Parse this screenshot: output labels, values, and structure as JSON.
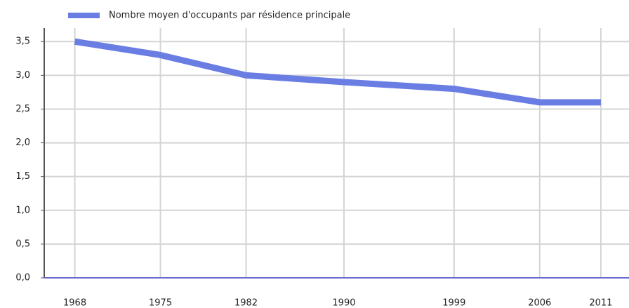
{
  "chart_data": {
    "type": "line",
    "x": [
      1968,
      1975,
      1982,
      1990,
      1999,
      2006,
      2011
    ],
    "series": [
      {
        "name": "Nombre moyen d'occupants par résidence principale",
        "color": "#6a7de3",
        "values": [
          3.5,
          3.3,
          3.0,
          2.9,
          2.8,
          2.6,
          2.6
        ]
      }
    ],
    "xlim": [
      1965.5,
      2013.3
    ],
    "xticks": [
      1968,
      1975,
      1982,
      1990,
      1999,
      2006,
      2011
    ],
    "ylim": [
      0,
      3.7
    ],
    "yticks": [
      {
        "value": 0,
        "label": "0,0"
      },
      {
        "value": 0.5,
        "label": "0,5"
      },
      {
        "value": 1,
        "label": "1,0"
      },
      {
        "value": 1.5,
        "label": "1,5"
      },
      {
        "value": 2,
        "label": "2,0"
      },
      {
        "value": 2.5,
        "label": "2,5"
      },
      {
        "value": 3,
        "label": "3,0"
      },
      {
        "value": 3.5,
        "label": "3,5"
      }
    ],
    "grid": true,
    "legend": "top"
  }
}
